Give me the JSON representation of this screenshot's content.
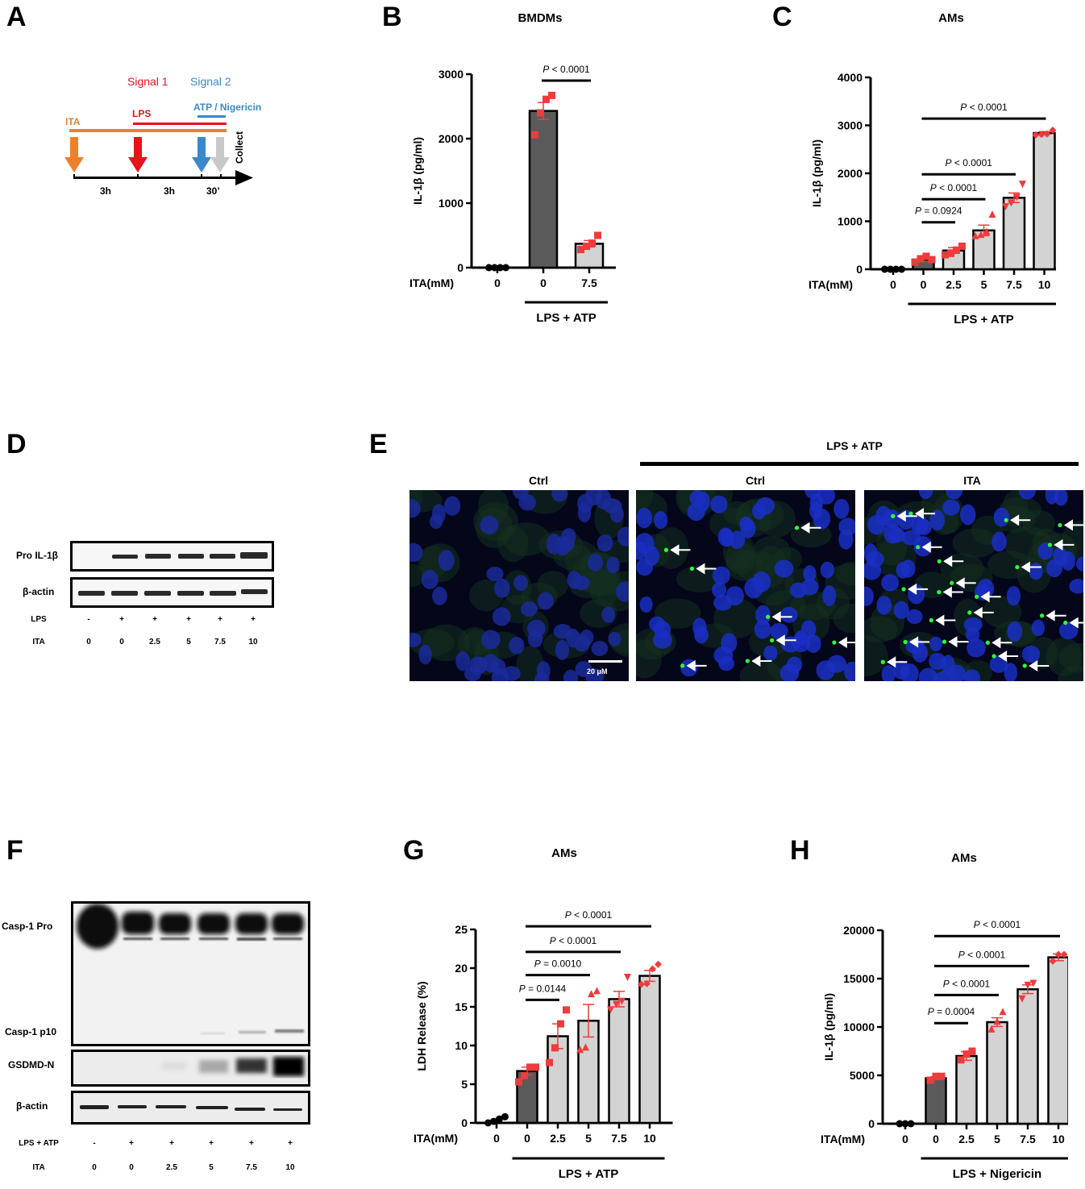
{
  "panels": {
    "A": {
      "letter": "A",
      "signal1": "Signal 1",
      "signal2": "Signal 2",
      "ita": "ITA",
      "lps": "LPS",
      "atp_nig": "ATP / Nigericin",
      "collect": "Collect",
      "t1": "3h",
      "t2": "3h",
      "t3": "30’",
      "colors": {
        "ita": "#f07f2a",
        "lps": "#e8121b",
        "atp": "#3a88c9",
        "collect": "#c8c8c8"
      }
    },
    "B": {
      "letter": "B",
      "title": "BMDMs"
    },
    "C": {
      "letter": "C",
      "title": "AMs"
    },
    "D": {
      "letter": "D",
      "rows": [
        "Pro IL-1β",
        "β-actin"
      ],
      "cond1_label": "LPS",
      "cond1": [
        "-",
        "+",
        "+",
        "+",
        "+",
        "+"
      ],
      "cond2_label": "ITA",
      "cond2": [
        "0",
        "0",
        "2.5",
        "5",
        "7.5",
        "10"
      ]
    },
    "E": {
      "letter": "E",
      "group_label": "LPS + ATP",
      "images": [
        "Ctrl",
        "Ctrl",
        "ITA"
      ],
      "scale_bar": "20 μM"
    },
    "F": {
      "letter": "F",
      "rows": [
        "Casp-1 Pro",
        "Casp-1 p10",
        "GSDMD-N",
        "β-actin"
      ],
      "cond1_label": "LPS + ATP",
      "cond1": [
        "-",
        "+",
        "+",
        "+",
        "+",
        "+"
      ],
      "cond2_label": "ITA",
      "cond2": [
        "0",
        "0",
        "2.5",
        "5",
        "7.5",
        "10"
      ]
    },
    "G": {
      "letter": "G",
      "title": "AMs"
    },
    "H": {
      "letter": "H",
      "title": "AMs"
    }
  },
  "chart_data": [
    {
      "panel": "B",
      "type": "bar",
      "title": "BMDMs",
      "ylabel": "IL-1β (pg/ml)",
      "xlabel_prefix": "ITA(mM)",
      "categories": [
        "0",
        "0",
        "7.5"
      ],
      "group_bar_label": "LPS + ATP",
      "yticks": [
        0,
        1000,
        2000,
        3000
      ],
      "ylim": [
        0,
        3000
      ],
      "values": [
        0,
        2430,
        370
      ],
      "sem": [
        0,
        130,
        50
      ],
      "points": [
        [
          0,
          0,
          0,
          0
        ],
        [
          2060,
          2400,
          2610,
          2670
        ],
        [
          280,
          330,
          380,
          500
        ]
      ],
      "bar_colors": [
        "#ffffff",
        "#5a5a5a",
        "#d3d3d3"
      ],
      "comparisons": [
        {
          "from": 1,
          "to": 2,
          "label": "P < 0.0001"
        }
      ]
    },
    {
      "panel": "C",
      "type": "bar",
      "title": "AMs",
      "ylabel": "IL-1β (pg/ml)",
      "xlabel_prefix": "ITA(mM)",
      "categories": [
        "0",
        "0",
        "2.5",
        "5",
        "7.5",
        "10"
      ],
      "group_bar_label": "LPS + ATP",
      "yticks": [
        0,
        1000,
        2000,
        3000,
        4000
      ],
      "ylim": [
        0,
        4000
      ],
      "values": [
        0,
        200,
        390,
        810,
        1490,
        2840
      ],
      "sem": [
        0,
        40,
        60,
        110,
        100,
        30
      ],
      "points": [
        [
          0,
          0,
          0,
          0
        ],
        [
          150,
          220,
          270,
          200
        ],
        [
          300,
          330,
          400,
          480
        ],
        [
          700,
          730,
          790,
          1150
        ],
        [
          1300,
          1380,
          1500,
          1770
        ],
        [
          2800,
          2810,
          2820,
          2900
        ]
      ],
      "bar_colors": [
        "#ffffff",
        "#5a5a5a",
        "#d3d3d3",
        "#d3d3d3",
        "#d3d3d3",
        "#d3d3d3"
      ],
      "comparisons": [
        {
          "from": 1,
          "to": 2,
          "label": "P = 0.0924"
        },
        {
          "from": 1,
          "to": 3,
          "label": "P < 0.0001"
        },
        {
          "from": 1,
          "to": 4,
          "label": "P < 0.0001"
        },
        {
          "from": 1,
          "to": 5,
          "label": "P < 0.0001"
        }
      ]
    },
    {
      "panel": "G",
      "type": "bar",
      "title": "AMs",
      "ylabel": "LDH Release (%)",
      "xlabel_prefix": "ITA(mM)",
      "categories": [
        "0",
        "0",
        "2.5",
        "5",
        "7.5",
        "10"
      ],
      "group_bar_label": "LPS + ATP",
      "yticks": [
        0,
        5,
        10,
        15,
        20,
        25
      ],
      "ylim": [
        0,
        25
      ],
      "values": [
        0.3,
        6.7,
        11.2,
        13.2,
        16.0,
        19.0
      ],
      "sem": [
        0.15,
        0.5,
        1.6,
        2.1,
        1.0,
        0.7
      ],
      "points": [
        [
          0.0,
          0.2,
          0.5,
          0.8
        ],
        [
          5.3,
          6.1,
          7.2,
          7.2
        ],
        [
          7.8,
          9.7,
          12.8,
          14.6
        ],
        [
          9.5,
          9.8,
          16.7,
          17.1
        ],
        [
          14.6,
          15.3,
          15.7,
          18.8
        ],
        [
          17.9,
          18.0,
          19.9,
          20.5
        ]
      ],
      "bar_colors": [
        "#ffffff",
        "#5a5a5a",
        "#d3d3d3",
        "#d3d3d3",
        "#d3d3d3",
        "#d3d3d3"
      ],
      "comparisons": [
        {
          "from": 1,
          "to": 2,
          "label": "P = 0.0144"
        },
        {
          "from": 1,
          "to": 3,
          "label": "P = 0.0010"
        },
        {
          "from": 1,
          "to": 4,
          "label": "P < 0.0001"
        },
        {
          "from": 1,
          "to": 5,
          "label": "P < 0.0001"
        }
      ]
    },
    {
      "panel": "H",
      "type": "bar",
      "title": "AMs",
      "ylabel": "IL-1β (pg/ml)",
      "xlabel_prefix": "ITA(mM)",
      "categories": [
        "0",
        "0",
        "2.5",
        "5",
        "7.5",
        "10"
      ],
      "group_bar_label": "LPS + Nigericin",
      "yticks": [
        0,
        5000,
        10000,
        15000,
        20000
      ],
      "ylim": [
        0,
        20000
      ],
      "values": [
        0,
        4700,
        7000,
        10500,
        13900,
        17200
      ],
      "sem": [
        0,
        150,
        450,
        450,
        450,
        350
      ],
      "points": [
        [
          0,
          0,
          0
        ],
        [
          4500,
          4900,
          4900
        ],
        [
          6600,
          7200,
          7500
        ],
        [
          9800,
          10600,
          11600
        ],
        [
          12900,
          14300,
          14500
        ],
        [
          16800,
          17500,
          17500
        ]
      ],
      "bar_colors": [
        "#ffffff",
        "#5a5a5a",
        "#d3d3d3",
        "#d3d3d3",
        "#d3d3d3",
        "#d3d3d3"
      ],
      "comparisons": [
        {
          "from": 1,
          "to": 2,
          "label": "P = 0.0004"
        },
        {
          "from": 1,
          "to": 3,
          "label": "P < 0.0001"
        },
        {
          "from": 1,
          "to": 4,
          "label": "P < 0.0001"
        },
        {
          "from": 1,
          "to": 5,
          "label": "P < 0.0001"
        }
      ]
    }
  ]
}
